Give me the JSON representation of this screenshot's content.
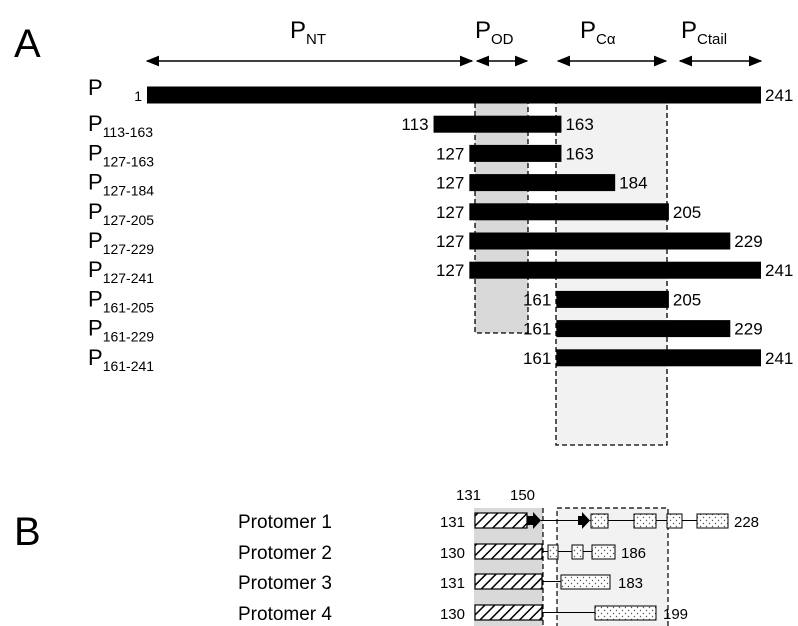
{
  "panel_a": {
    "label": "A",
    "domains": [
      {
        "main": "P",
        "sub": "NT"
      },
      {
        "main": "P",
        "sub": "OD"
      },
      {
        "main": "P",
        "sub": "Cα"
      },
      {
        "main": "P",
        "sub": "Ctail"
      }
    ],
    "constructs": [
      {
        "main": "P",
        "sub": "",
        "start": 1,
        "end": 241
      },
      {
        "main": "P",
        "sub": "113-163",
        "start": 113,
        "end": 163
      },
      {
        "main": "P",
        "sub": "127-163",
        "start": 127,
        "end": 163
      },
      {
        "main": "P",
        "sub": "127-184",
        "start": 127,
        "end": 184
      },
      {
        "main": "P",
        "sub": "127-205",
        "start": 127,
        "end": 205
      },
      {
        "main": "P",
        "sub": "127-229",
        "start": 127,
        "end": 229
      },
      {
        "main": "P",
        "sub": "127-241",
        "start": 127,
        "end": 241
      },
      {
        "main": "P",
        "sub": "161-205",
        "start": 161,
        "end": 205
      },
      {
        "main": "P",
        "sub": "161-229",
        "start": 161,
        "end": 229
      },
      {
        "main": "P",
        "sub": "161-241",
        "start": 161,
        "end": 241
      }
    ]
  },
  "panel_b": {
    "label": "B",
    "markers": [
      "131",
      "150"
    ],
    "protomers": [
      {
        "name": "Protomer 1",
        "start": "131",
        "end": "228"
      },
      {
        "name": "Protomer 2",
        "start": "130",
        "end": "186"
      },
      {
        "name": "Protomer 3",
        "start": "131",
        "end": "183"
      },
      {
        "name": "Protomer 4",
        "start": "130",
        "end": "199"
      }
    ]
  },
  "colors": {
    "bar": "#000000",
    "od_box": "#d9d9d9",
    "calpha_box": "#f2f2f2",
    "text": "#000000"
  }
}
